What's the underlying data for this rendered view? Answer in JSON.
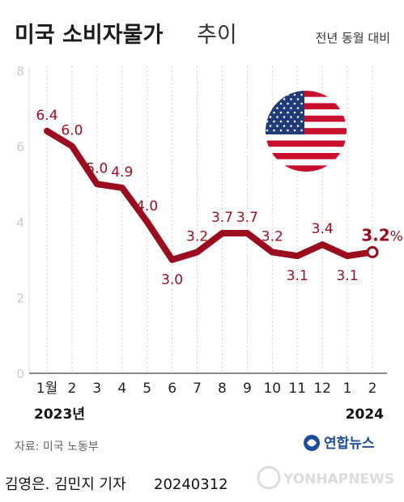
{
  "header": {
    "title_main": "미국 소비자물가",
    "title_suffix": "추이",
    "subtitle": "전년 동월 대비"
  },
  "chart_data": {
    "type": "line",
    "categories": [
      "1월",
      "2",
      "3",
      "4",
      "5",
      "6",
      "7",
      "8",
      "9",
      "10",
      "11",
      "12",
      "1",
      "2"
    ],
    "values": [
      6.4,
      6.0,
      5.0,
      4.9,
      4.0,
      3.0,
      3.2,
      3.7,
      3.7,
      3.2,
      3.1,
      3.4,
      3.1,
      3.2
    ],
    "value_labels": [
      "6.4",
      "6.0",
      "5.0",
      "4.9",
      "4.0",
      "3.0",
      "3.2",
      "3.7",
      "3.7",
      "3.2",
      "3.1",
      "3.4",
      "3.1",
      "3.2"
    ],
    "last_value_label": "3.2",
    "last_value_unit": "%",
    "yticks": [
      "0",
      "2",
      "4",
      "6",
      "8"
    ],
    "ylim": [
      0,
      8
    ],
    "year_labels": [
      "2023년",
      "2024"
    ],
    "grid": "vertical dotted lines at each month",
    "line_color": "#9b0c1e"
  },
  "footer": {
    "source": "자료: 미국 노동부",
    "credit": "김영은. 김민지 기자",
    "date": "20240312",
    "logo": "연합뉴스",
    "watermark": "YONHAPNEWS"
  }
}
